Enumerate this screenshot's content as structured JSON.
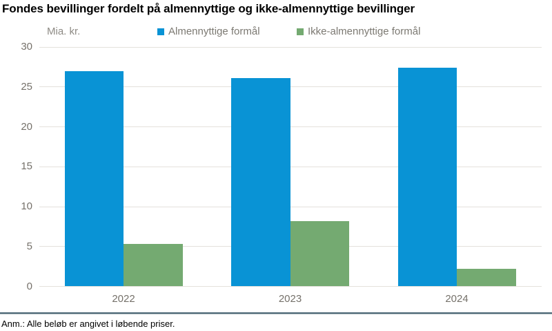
{
  "title": "Fondes bevillinger fordelt på almennyttige og ikke-almennyttige bevillinger",
  "unit_label": "Mia. kr.",
  "legend": [
    {
      "label": "Almennyttige formål",
      "color": "#0993d5"
    },
    {
      "label": "Ikke-almennyttige formål",
      "color": "#74aa71"
    }
  ],
  "footnote": "Anm.: Alle beløb er angivet i løbende priser.",
  "colors": {
    "series_blue": "#0993d5",
    "series_green": "#74aa71",
    "gridline": "#e4e1dc",
    "axis_text": "#75716a",
    "divider": "#4a6674"
  },
  "chart_data": {
    "type": "bar",
    "categories": [
      "2022",
      "2023",
      "2024"
    ],
    "series": [
      {
        "name": "Almennyttige formål",
        "color": "#0993d5",
        "values": [
          27.0,
          26.1,
          27.4
        ]
      },
      {
        "name": "Ikke-almennyttige formål",
        "color": "#74aa71",
        "values": [
          5.3,
          8.2,
          2.2
        ]
      }
    ],
    "title": "Fondes bevillinger fordelt på almennyttige og ikke-almennyttige bevillinger",
    "xlabel": "",
    "ylabel": "Mia. kr.",
    "ylim": [
      0,
      30
    ],
    "yticks": [
      0,
      5,
      10,
      15,
      20,
      25,
      30
    ],
    "grid": true,
    "legend_position": "top",
    "note": "Anm.: Alle beløb er angivet i løbende priser."
  }
}
